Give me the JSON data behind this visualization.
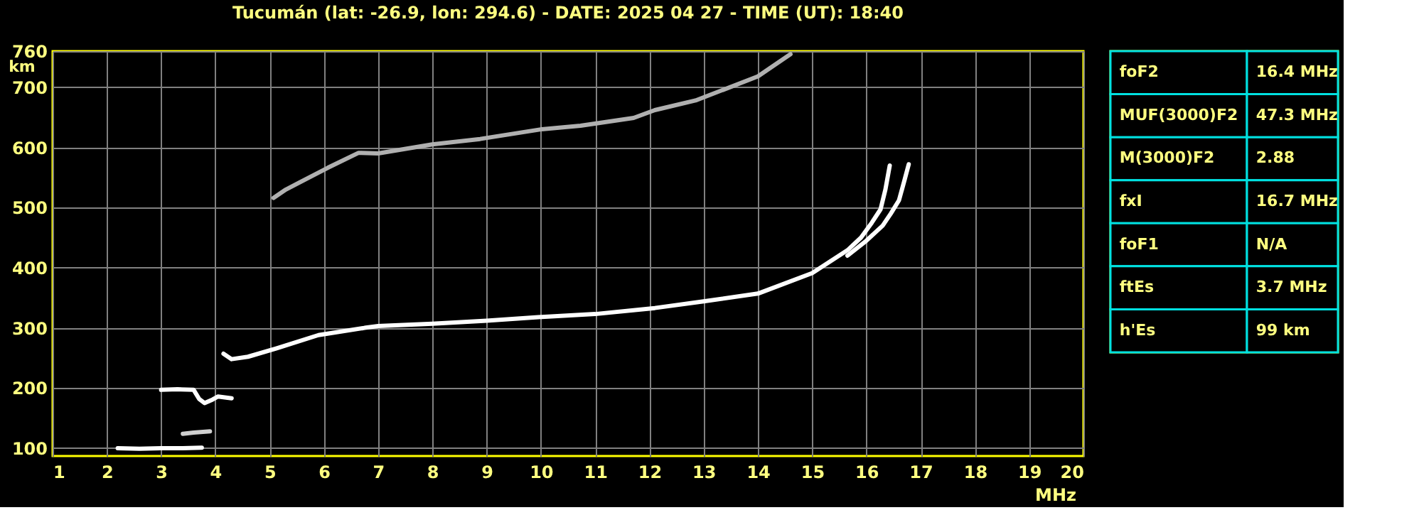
{
  "chart_data": [
    {
      "type": "line",
      "title": "Tucumán (lat: -26.9, lon: 294.6) - DATE: 2025 04 27 - TIME (UT): 18:40",
      "xlabel": "MHz",
      "ylabel": "km",
      "xlim": [
        1,
        20
      ],
      "ylim": [
        87,
        760
      ],
      "xticks": [
        1,
        2,
        3,
        4,
        5,
        6,
        7,
        8,
        9,
        10,
        11,
        12,
        13,
        14,
        15,
        16,
        17,
        18,
        19,
        20
      ],
      "yticks": [
        100,
        200,
        300,
        400,
        500,
        600,
        700,
        760
      ],
      "grid": true,
      "marker": "none",
      "line_style": "solid",
      "series": [
        {
          "color": "#ffffff",
          "x": [
            4.15,
            4.3,
            4.6,
            5.13,
            5.9,
            6.75,
            7,
            8,
            9,
            10,
            11,
            12.1,
            13,
            14,
            15,
            15.65,
            15.9,
            16.1,
            16.26,
            16.35,
            16.43
          ],
          "values": [
            257,
            248,
            252,
            266,
            288,
            300,
            303,
            307,
            312,
            318,
            323,
            333,
            344,
            357,
            391,
            429,
            450,
            475,
            497,
            530,
            570
          ]
        },
        {
          "color": "#ffffff",
          "x": [
            15.65,
            16.0,
            16.3,
            16.45,
            16.6,
            16.7,
            16.78
          ],
          "values": [
            420,
            445,
            470,
            490,
            512,
            545,
            572
          ]
        },
        {
          "color": "#ffffff",
          "x": [
            2.2,
            2.6,
            3.0,
            3.4,
            3.75
          ],
          "values": [
            100,
            99,
            100,
            100,
            101
          ]
        },
        {
          "color": "#d0d0d0",
          "x": [
            3.4,
            3.6,
            3.9
          ],
          "values": [
            124,
            126,
            128
          ]
        },
        {
          "color": "#ffffff",
          "x": [
            3.0,
            3.3,
            3.6,
            3.7,
            3.8,
            3.95,
            4.05,
            4.3
          ],
          "values": [
            197,
            198,
            197,
            182,
            175,
            181,
            186,
            183
          ]
        },
        {
          "color": "#b0b0b0",
          "x": [
            5.07,
            5.3,
            6.07,
            6.64,
            7.0,
            8.0,
            8.88,
            10.0,
            10.73,
            11.71,
            12.1,
            12.85,
            14.0,
            14.6
          ],
          "values": [
            516,
            530,
            566,
            591,
            590,
            605,
            614,
            630,
            636,
            649,
            662,
            678,
            718,
            755
          ]
        }
      ]
    },
    {
      "type": "other",
      "annotations": [
        "foF2",
        "16.4 MHz",
        "MUF(3000)F2",
        "47.3 MHz",
        "M(3000)F2",
        "2.88",
        "fxI",
        "16.7 MHz",
        "foF1",
        "N/A",
        "ftEs",
        "3.7 MHz",
        "h'Es",
        "99 km"
      ]
    }
  ]
}
